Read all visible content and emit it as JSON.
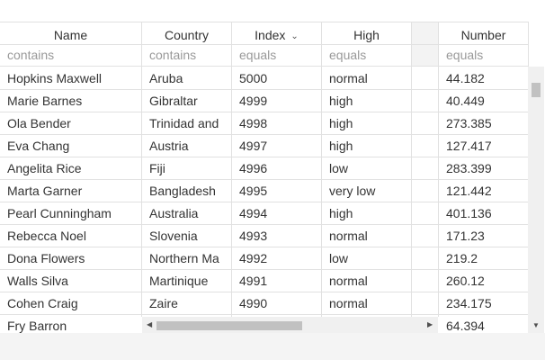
{
  "columns": [
    {
      "title": "Name",
      "filter": "contains"
    },
    {
      "title": "Country",
      "filter": "contains"
    },
    {
      "title": "Index",
      "filter": "equals"
    },
    {
      "title": "High",
      "filter": "equals"
    },
    {
      "title": "Number",
      "filter": "equals"
    }
  ],
  "rows": [
    {
      "name": "Hopkins Maxwell",
      "country": "Aruba",
      "index": "5000",
      "high": "normal",
      "number": "44.182"
    },
    {
      "name": "Marie Barnes",
      "country": "Gibraltar",
      "index": "4999",
      "high": "high",
      "number": "40.449"
    },
    {
      "name": "Ola Bender",
      "country": "Trinidad and",
      "index": "4998",
      "high": "high",
      "number": "273.385"
    },
    {
      "name": "Eva Chang",
      "country": "Austria",
      "index": "4997",
      "high": "high",
      "number": "127.417"
    },
    {
      "name": "Angelita Rice",
      "country": "Fiji",
      "index": "4996",
      "high": "low",
      "number": "283.399"
    },
    {
      "name": "Marta Garner",
      "country": "Bangladesh",
      "index": "4995",
      "high": "very low",
      "number": "121.442"
    },
    {
      "name": "Pearl Cunningham",
      "country": "Australia",
      "index": "4994",
      "high": "high",
      "number": "401.136"
    },
    {
      "name": "Rebecca Noel",
      "country": "Slovenia",
      "index": "4993",
      "high": "normal",
      "number": "171.23"
    },
    {
      "name": "Dona Flowers",
      "country": "Northern Ma",
      "index": "4992",
      "high": "low",
      "number": "219.2"
    },
    {
      "name": "Walls Silva",
      "country": "Martinique",
      "index": "4991",
      "high": "normal",
      "number": "260.12"
    },
    {
      "name": "Cohen Craig",
      "country": "Zaire",
      "index": "4990",
      "high": "normal",
      "number": "234.175"
    },
    {
      "name": "Fry Barron",
      "country": "",
      "index": "",
      "high": "",
      "number": "64.394"
    }
  ],
  "icons": {
    "sort": "chevron-down-icon",
    "scroll_left": "triangle-left-icon",
    "scroll_right": "triangle-right-icon",
    "scroll_down": "triangle-down-icon"
  }
}
